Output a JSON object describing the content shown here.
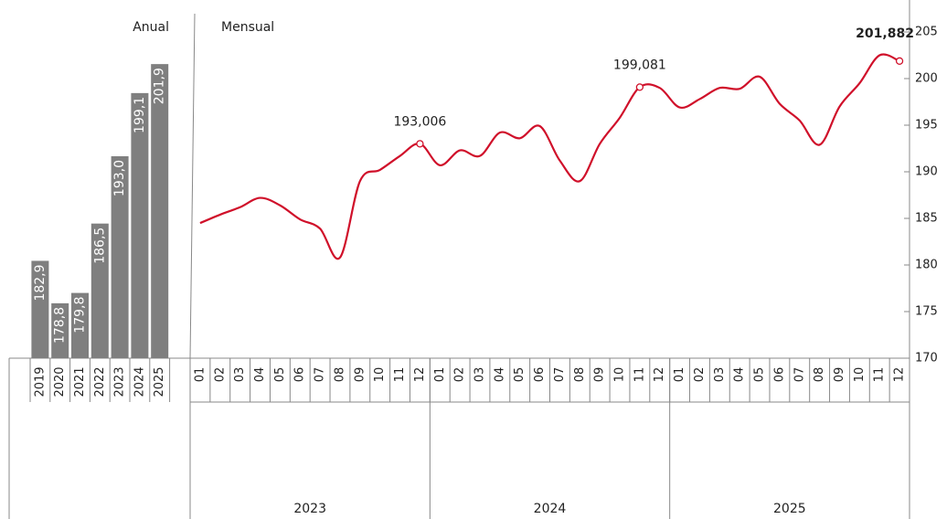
{
  "chart_data": [
    {
      "type": "bar",
      "title": "Anual",
      "color": "#7f7f7f",
      "categories": [
        "2019",
        "2020",
        "2021",
        "2022",
        "2023",
        "2024",
        "2025"
      ],
      "values": [
        182.9,
        178.8,
        179.8,
        186.5,
        193.0,
        199.1,
        201.9
      ],
      "value_labels": [
        "182,9",
        "178,8",
        "179,8",
        "186,5",
        "193,0",
        "199,1",
        "201,9"
      ],
      "ylim": [
        173.5,
        205
      ]
    },
    {
      "type": "line",
      "title": "Mensual",
      "color": "#d0102a",
      "categories": [
        "01",
        "02",
        "03",
        "04",
        "05",
        "06",
        "07",
        "08",
        "09",
        "10",
        "11",
        "12",
        "01",
        "02",
        "03",
        "04",
        "05",
        "06",
        "07",
        "08",
        "09",
        "10",
        "11",
        "12",
        "01",
        "02",
        "03",
        "04",
        "05",
        "06",
        "07",
        "08",
        "09",
        "10",
        "11",
        "12"
      ],
      "category_groups": [
        "2023",
        "2024",
        "2025"
      ],
      "values": [
        184.5,
        185.4,
        186.2,
        187.2,
        186.4,
        184.9,
        183.9,
        180.8,
        189.0,
        190.2,
        191.7,
        193.006,
        190.7,
        192.3,
        191.7,
        194.2,
        193.6,
        194.9,
        191.2,
        189.0,
        193.0,
        195.8,
        199.081,
        199.0,
        196.9,
        197.8,
        199.0,
        198.9,
        200.2,
        197.3,
        195.5,
        192.9,
        197.0,
        199.5,
        202.5,
        201.882
      ],
      "value_labels": [
        null,
        null,
        null,
        null,
        null,
        null,
        null,
        null,
        null,
        null,
        null,
        "193,006",
        null,
        null,
        null,
        null,
        null,
        null,
        null,
        null,
        null,
        null,
        "199,081",
        null,
        null,
        null,
        null,
        null,
        null,
        null,
        null,
        null,
        null,
        null,
        null,
        "201,882"
      ],
      "ylim": [
        170,
        205
      ],
      "yticks": [
        170,
        175,
        180,
        185,
        190,
        195,
        200,
        205
      ]
    }
  ]
}
